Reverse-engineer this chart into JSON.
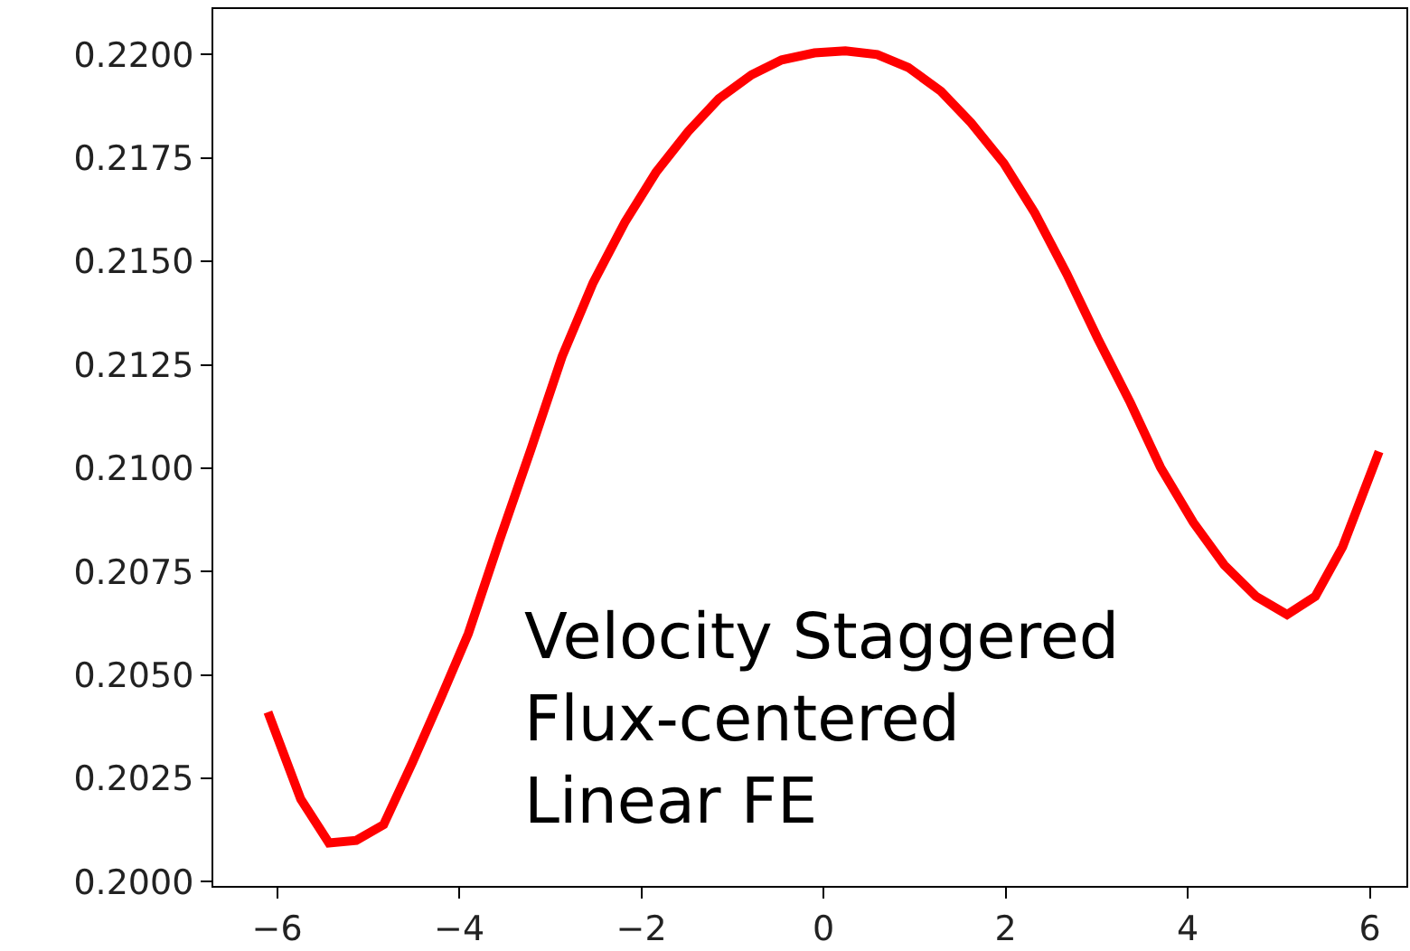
{
  "chart_data": {
    "type": "line",
    "x": [
      -6.1,
      -5.74,
      -5.43,
      -5.13,
      -4.83,
      -4.51,
      -4.2,
      -3.9,
      -3.56,
      -3.21,
      -2.87,
      -2.53,
      -2.18,
      -1.84,
      -1.49,
      -1.15,
      -0.79,
      -0.46,
      -0.1,
      0.24,
      0.59,
      0.93,
      1.29,
      1.62,
      1.98,
      2.32,
      2.67,
      3.01,
      3.37,
      3.7,
      4.06,
      4.4,
      4.75,
      5.09,
      5.4,
      5.7,
      6.1
    ],
    "series": [
      {
        "color": "#ff0000",
        "values": [
          0.2041,
          0.202,
          0.20094,
          0.201,
          0.20138,
          0.2029,
          0.20445,
          0.206,
          0.20824,
          0.21047,
          0.2127,
          0.21448,
          0.21595,
          0.21715,
          0.21813,
          0.21893,
          0.21951,
          0.21987,
          0.22004,
          0.22009,
          0.22,
          0.21969,
          0.21911,
          0.21835,
          0.21737,
          0.21617,
          0.2147,
          0.21314,
          0.21158,
          0.21002,
          0.20869,
          0.20766,
          0.2069,
          0.20646,
          0.2069,
          0.2081,
          0.2104
        ]
      }
    ],
    "xlim": [
      -6.7,
      6.4
    ],
    "ylim": [
      0.1999,
      0.2211
    ],
    "xticks": [
      {
        "value": -6,
        "label": "−6"
      },
      {
        "value": -4,
        "label": "−4"
      },
      {
        "value": -2,
        "label": "−2"
      },
      0,
      2,
      4,
      6
    ],
    "yticks": [
      {
        "value": 0.2,
        "label": "0.2000"
      },
      {
        "value": 0.2025,
        "label": "0.2025"
      },
      {
        "value": 0.205,
        "label": "0.2050"
      },
      {
        "value": 0.2075,
        "label": "0.2075"
      },
      {
        "value": 0.21,
        "label": "0.2100"
      },
      {
        "value": 0.2125,
        "label": "0.2125"
      },
      {
        "value": 0.215,
        "label": "0.2150"
      },
      {
        "value": 0.2175,
        "label": "0.2175"
      },
      {
        "value": 0.22,
        "label": "0.2200"
      }
    ],
    "annotations": [
      "Velocity Staggered\nFlux-centered\nLinear FE"
    ],
    "marker": "none",
    "line_style": "solid"
  }
}
